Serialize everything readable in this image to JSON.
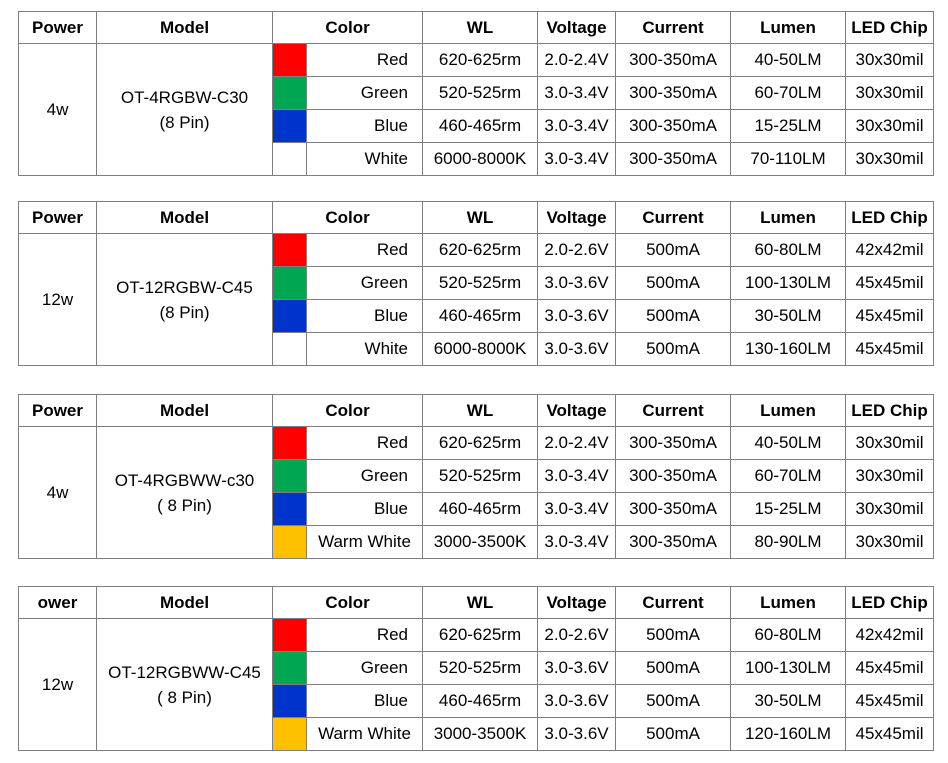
{
  "headers": [
    "Power",
    "Model",
    "Color",
    "WL",
    "Voltage",
    "Current",
    "Lumen",
    "LED Chip"
  ],
  "tables": [
    {
      "header_power": "Power",
      "power": "4w",
      "model_line1": "OT-4RGBW-C30",
      "model_line2": "(8 Pin)",
      "rows": [
        {
          "swatch": "#ff0000",
          "color": "Red",
          "wl": "620-625rm",
          "voltage": "2.0-2.4V",
          "current": "300-350mA",
          "lumen": "40-50LM",
          "chip": "30x30mil"
        },
        {
          "swatch": "#00a651",
          "color": "Green",
          "wl": "520-525rm",
          "voltage": "3.0-3.4V",
          "current": "300-350mA",
          "lumen": "60-70LM",
          "chip": "30x30mil"
        },
        {
          "swatch": "#0033cc",
          "color": "Blue",
          "wl": "460-465rm",
          "voltage": "3.0-3.4V",
          "current": "300-350mA",
          "lumen": "15-25LM",
          "chip": "30x30mil"
        },
        {
          "swatch": "#ffffff",
          "color": "White",
          "wl": "6000-8000K",
          "voltage": "3.0-3.4V",
          "current": "300-350mA",
          "lumen": "70-110LM",
          "chip": "30x30mil"
        }
      ]
    },
    {
      "header_power": "Power",
      "power": "12w",
      "model_line1": "OT-12RGBW-C45",
      "model_line2": "(8 Pin)",
      "rows": [
        {
          "swatch": "#ff0000",
          "color": "Red",
          "wl": "620-625rm",
          "voltage": "2.0-2.6V",
          "current": "500mA",
          "lumen": "60-80LM",
          "chip": "42x42mil"
        },
        {
          "swatch": "#00a651",
          "color": "Green",
          "wl": "520-525rm",
          "voltage": "3.0-3.6V",
          "current": "500mA",
          "lumen": "100-130LM",
          "chip": "45x45mil"
        },
        {
          "swatch": "#0033cc",
          "color": "Blue",
          "wl": "460-465rm",
          "voltage": "3.0-3.6V",
          "current": "500mA",
          "lumen": "30-50LM",
          "chip": "45x45mil"
        },
        {
          "swatch": "#ffffff",
          "color": "White",
          "wl": "6000-8000K",
          "voltage": "3.0-3.6V",
          "current": "500mA",
          "lumen": "130-160LM",
          "chip": "45x45mil"
        }
      ]
    },
    {
      "header_power": "Power",
      "power": "4w",
      "model_line1": "OT-4RGBWW-c30",
      "model_line2": "( 8 Pin)",
      "rows": [
        {
          "swatch": "#ff0000",
          "color": "Red",
          "wl": "620-625rm",
          "voltage": "2.0-2.4V",
          "current": "300-350mA",
          "lumen": "40-50LM",
          "chip": "30x30mil"
        },
        {
          "swatch": "#00a651",
          "color": "Green",
          "wl": "520-525rm",
          "voltage": "3.0-3.4V",
          "current": "300-350mA",
          "lumen": "60-70LM",
          "chip": "30x30mil"
        },
        {
          "swatch": "#0033cc",
          "color": "Blue",
          "wl": "460-465rm",
          "voltage": "3.0-3.4V",
          "current": "300-350mA",
          "lumen": "15-25LM",
          "chip": "30x30mil"
        },
        {
          "swatch": "#ffc000",
          "color": "Warm White",
          "wl": "3000-3500K",
          "voltage": "3.0-3.4V",
          "current": "300-350mA",
          "lumen": "80-90LM",
          "chip": "30x30mil"
        }
      ]
    },
    {
      "header_power": "ower",
      "power": "12w",
      "model_line1": "OT-12RGBWW-C45",
      "model_line2": "( 8 Pin)",
      "rows": [
        {
          "swatch": "#ff0000",
          "color": "Red",
          "wl": "620-625rm",
          "voltage": "2.0-2.6V",
          "current": "500mA",
          "lumen": "60-80LM",
          "chip": "42x42mil"
        },
        {
          "swatch": "#00a651",
          "color": "Green",
          "wl": "520-525rm",
          "voltage": "3.0-3.6V",
          "current": "500mA",
          "lumen": "100-130LM",
          "chip": "45x45mil"
        },
        {
          "swatch": "#0033cc",
          "color": "Blue",
          "wl": "460-465rm",
          "voltage": "3.0-3.6V",
          "current": "500mA",
          "lumen": "30-50LM",
          "chip": "45x45mil"
        },
        {
          "swatch": "#ffc000",
          "color": "Warm White",
          "wl": "3000-3500K",
          "voltage": "3.0-3.6V",
          "current": "500mA",
          "lumen": "120-160LM",
          "chip": "45x45mil"
        }
      ]
    }
  ]
}
